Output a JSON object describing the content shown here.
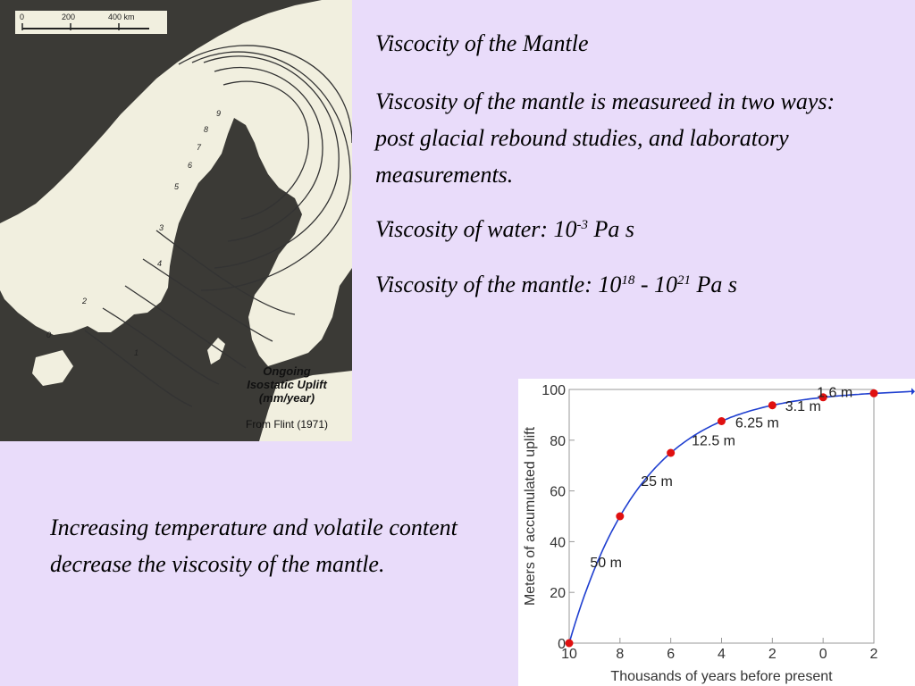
{
  "slide": {
    "title": "Viscocity of the Mantle",
    "paragraph1": "Viscosity of the mantle is measureed in two ways: post glacial rebound studies, and laboratory measurements.",
    "water_prefix": "Viscosity of water:  10",
    "water_exp": "-3",
    "water_unit": " Pa s",
    "mantle_prefix": "Viscosity of the mantle: 10",
    "mantle_exp1": "18",
    "mantle_mid": " - 10",
    "mantle_exp2": "21",
    "mantle_unit": " Pa s",
    "bottom_text": "Increasing temperature and volatile content decrease the viscosity of the mantle."
  },
  "map": {
    "scale_labels": [
      "0",
      "200",
      "400 km"
    ],
    "caption_line1": "Ongoing",
    "caption_line2": "Isostatic Uplift",
    "caption_line3": "(mm/year)",
    "credit": "From Flint (1971)",
    "contour_labels": [
      "9",
      "8",
      "7",
      "6",
      "5",
      "4",
      "3",
      "2",
      "1",
      "0"
    ],
    "land_color": "#f1efdf",
    "water_color": "#3b3a36"
  },
  "chart_data": {
    "type": "line",
    "x": [
      10,
      8,
      6,
      4,
      2,
      0,
      -2
    ],
    "x_tick_labels": [
      "10",
      "8",
      "6",
      "4",
      "2",
      "0",
      "2"
    ],
    "y": [
      0,
      50,
      75,
      87.5,
      93.75,
      96.9,
      98.5
    ],
    "ylim": [
      0,
      100
    ],
    "y_ticks": [
      0,
      20,
      40,
      60,
      80,
      100
    ],
    "xlabel": "Thousands of years before present",
    "ylabel": "Meters of accumulated uplift",
    "annotations": [
      "50 m",
      "25 m",
      "12.5 m",
      "6.25 m",
      "3.1 m",
      "1.6 m"
    ],
    "line_color": "#1f3fd0",
    "point_color": "#e01010"
  }
}
